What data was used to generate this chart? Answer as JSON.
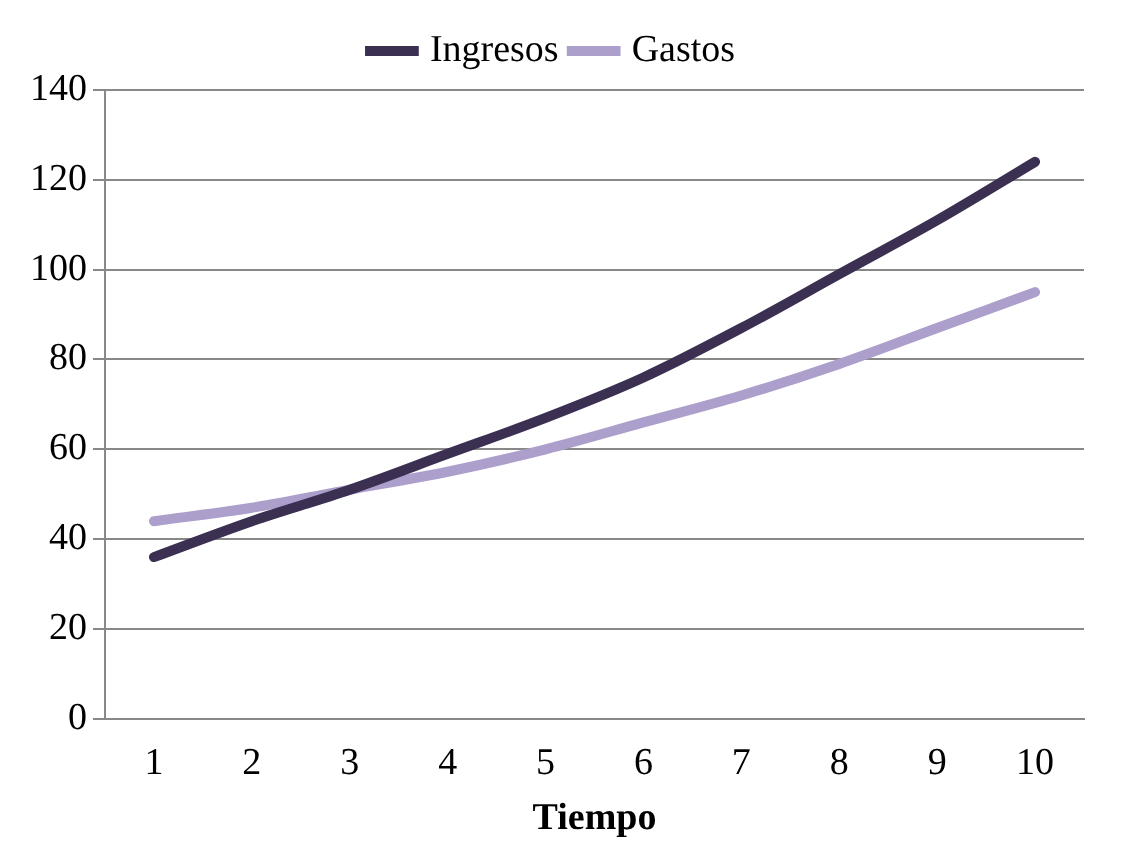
{
  "chart_data": {
    "type": "line",
    "xlabel": "Tiempo",
    "categories": [
      "1",
      "2",
      "3",
      "4",
      "5",
      "6",
      "7",
      "8",
      "9",
      "10"
    ],
    "series": [
      {
        "name": "Ingresos",
        "color": "#3b2f52",
        "values": [
          36,
          44,
          51,
          59,
          67,
          76,
          87,
          99,
          111,
          124
        ]
      },
      {
        "name": "Gastos",
        "color": "#ad9fcb",
        "values": [
          44,
          47,
          51,
          55,
          60,
          66,
          72,
          79,
          87,
          95
        ]
      }
    ],
    "ylim": [
      0,
      140
    ],
    "yticks": [
      0,
      20,
      40,
      60,
      80,
      100,
      120,
      140
    ],
    "grid": "y",
    "legend": "top",
    "marker": "none",
    "line_style": "solid"
  }
}
